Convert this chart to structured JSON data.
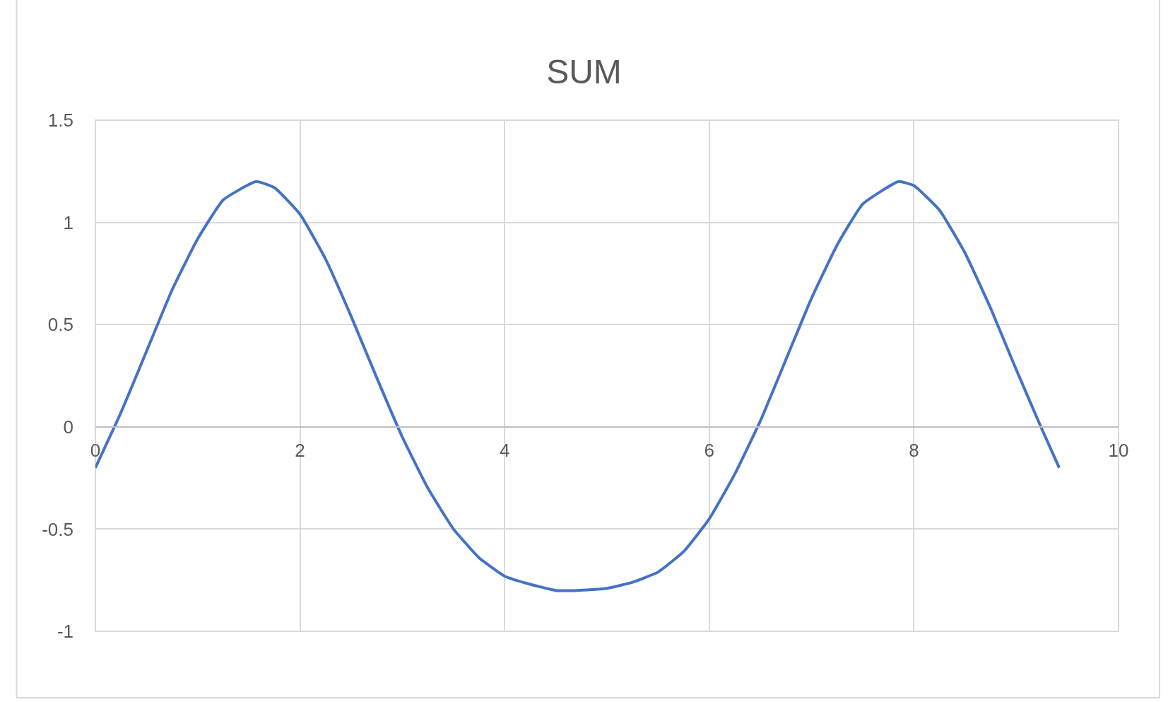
{
  "chart_data": {
    "type": "line",
    "title": "SUM",
    "x": [
      0,
      0.25,
      0.5,
      0.75,
      1,
      1.25,
      1.57,
      1.75,
      2,
      2.25,
      2.5,
      2.75,
      3,
      3.25,
      3.5,
      3.75,
      4,
      4.25,
      4.5,
      4.71,
      5,
      5.25,
      5.5,
      5.75,
      6,
      6.25,
      6.5,
      6.75,
      7,
      7.25,
      7.5,
      7.85,
      8,
      8.25,
      8.5,
      8.75,
      9,
      9.25,
      9.42
    ],
    "series": [
      {
        "color": "#4472c4",
        "values": [
          -0.2,
          0.07,
          0.37,
          0.67,
          0.92,
          1.11,
          1.2,
          1.17,
          1.04,
          0.82,
          0.54,
          0.24,
          -0.05,
          -0.3,
          -0.5,
          -0.64,
          -0.73,
          -0.77,
          -0.8,
          -0.8,
          -0.79,
          -0.76,
          -0.71,
          -0.61,
          -0.45,
          -0.23,
          0.03,
          0.33,
          0.63,
          0.89,
          1.09,
          1.2,
          1.18,
          1.06,
          0.85,
          0.58,
          0.28,
          -0.01,
          -0.2
        ]
      }
    ],
    "xlim": [
      0,
      10
    ],
    "xticks": [
      0,
      2,
      4,
      6,
      8,
      10
    ],
    "ylim": [
      -1,
      1.5
    ],
    "yticks": [
      -1,
      -0.5,
      0,
      0.5,
      1,
      1.5
    ],
    "grid": true,
    "marker": "none",
    "line_style": "solid"
  }
}
